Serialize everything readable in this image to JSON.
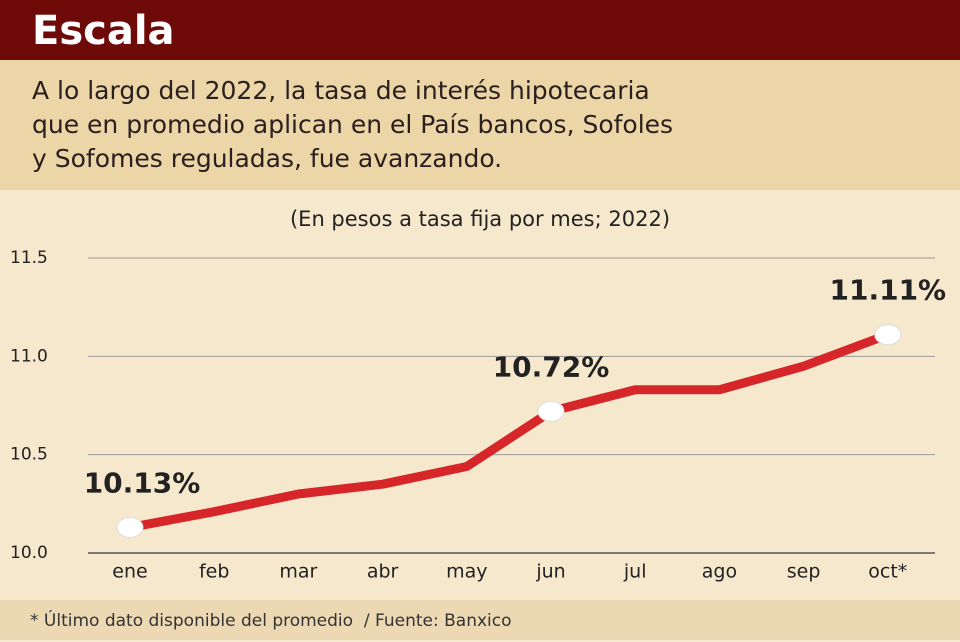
{
  "header": {
    "title": "Escala",
    "description": [
      "A lo largo del 2022, la tasa de interés hipotecaria",
      "que en promedio aplican en el País bancos, Sofoles",
      "y Sofomes reguladas, fue avanzando."
    ]
  },
  "chart_data": {
    "type": "line",
    "subtitle": "(En pesos a tasa fija por mes; 2022)",
    "categories": [
      "ene",
      "feb",
      "mar",
      "abr",
      "may",
      "jun",
      "jul",
      "ago",
      "sep",
      "oct*"
    ],
    "series": [
      {
        "color": "#d7262a",
        "values": [
          10.13,
          10.21,
          10.3,
          10.35,
          10.44,
          10.72,
          10.83,
          10.83,
          10.95,
          11.11
        ],
        "value_labels": [
          "10.13%",
          null,
          null,
          null,
          null,
          "10.72%",
          null,
          null,
          null,
          "11.11%"
        ]
      }
    ],
    "ylim": [
      10.0,
      11.5
    ],
    "yticks": [
      {
        "value": 10,
        "label": "10.0"
      },
      10.5,
      {
        "value": 11,
        "label": "11.0"
      },
      11.5
    ],
    "grid": true
  },
  "footer": {
    "note": "* Último dato disponible del promedio  / Fuente: Banxico"
  }
}
